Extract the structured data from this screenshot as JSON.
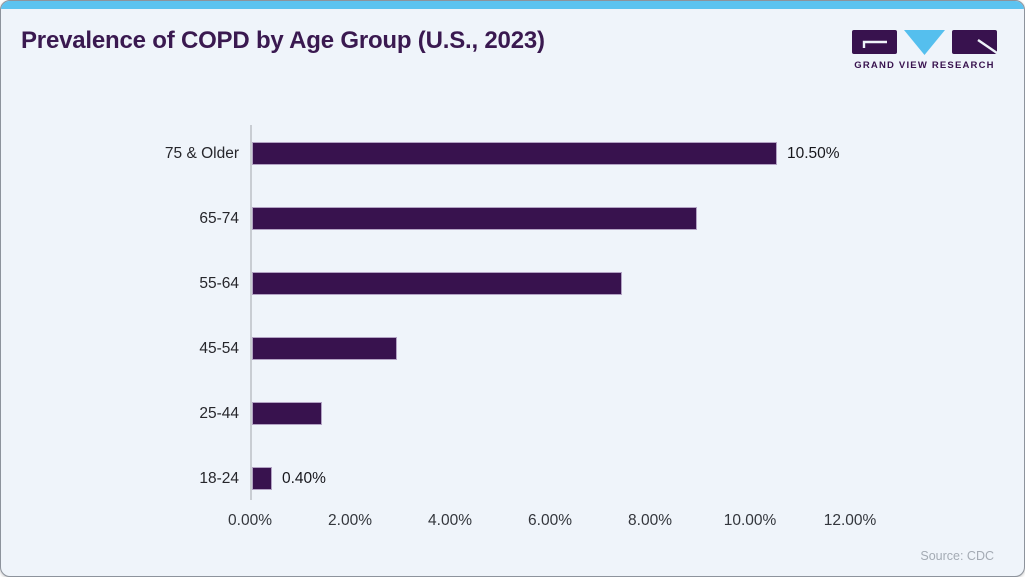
{
  "header": {
    "title": "Prevalence of COPD by Age Group (U.S., 2023)",
    "logo_text": "GRAND VIEW RESEARCH"
  },
  "footer": {
    "source": "Source: CDC"
  },
  "chart_data": {
    "type": "bar",
    "orientation": "horizontal",
    "title": "Prevalence of COPD by Age Group (U.S., 2023)",
    "categories": [
      "75 & Older",
      "65-74",
      "55-64",
      "45-54",
      "25-44",
      "18-24"
    ],
    "values": [
      10.5,
      8.9,
      7.4,
      2.9,
      1.4,
      0.4
    ],
    "value_labels": [
      "10.50%",
      "",
      "",
      "",
      "",
      "0.40%"
    ],
    "x_ticks": [
      {
        "value": 0,
        "label": "0.00%"
      },
      {
        "value": 2,
        "label": "2.00%"
      },
      {
        "value": 4,
        "label": "4.00%"
      },
      {
        "value": 6,
        "label": "6.00%"
      },
      {
        "value": 8,
        "label": "8.00%"
      },
      {
        "value": 10,
        "label": "10.00%"
      },
      {
        "value": 12,
        "label": "12.00%"
      }
    ],
    "xlim": [
      0,
      12
    ],
    "xlabel": "",
    "ylabel": "",
    "grid": false,
    "legend": false,
    "bar_color": "#38124e",
    "bar_border_color": "#b2a2c3",
    "axis_line_color": "#c9cdd3"
  },
  "colors": {
    "accent_strip": "#5cc3f0",
    "title_text": "#3a1950",
    "card_background": "#eff4fa",
    "logo_purple": "#38124e",
    "logo_blue": "#55bfee",
    "source_text": "#a4abb4"
  }
}
